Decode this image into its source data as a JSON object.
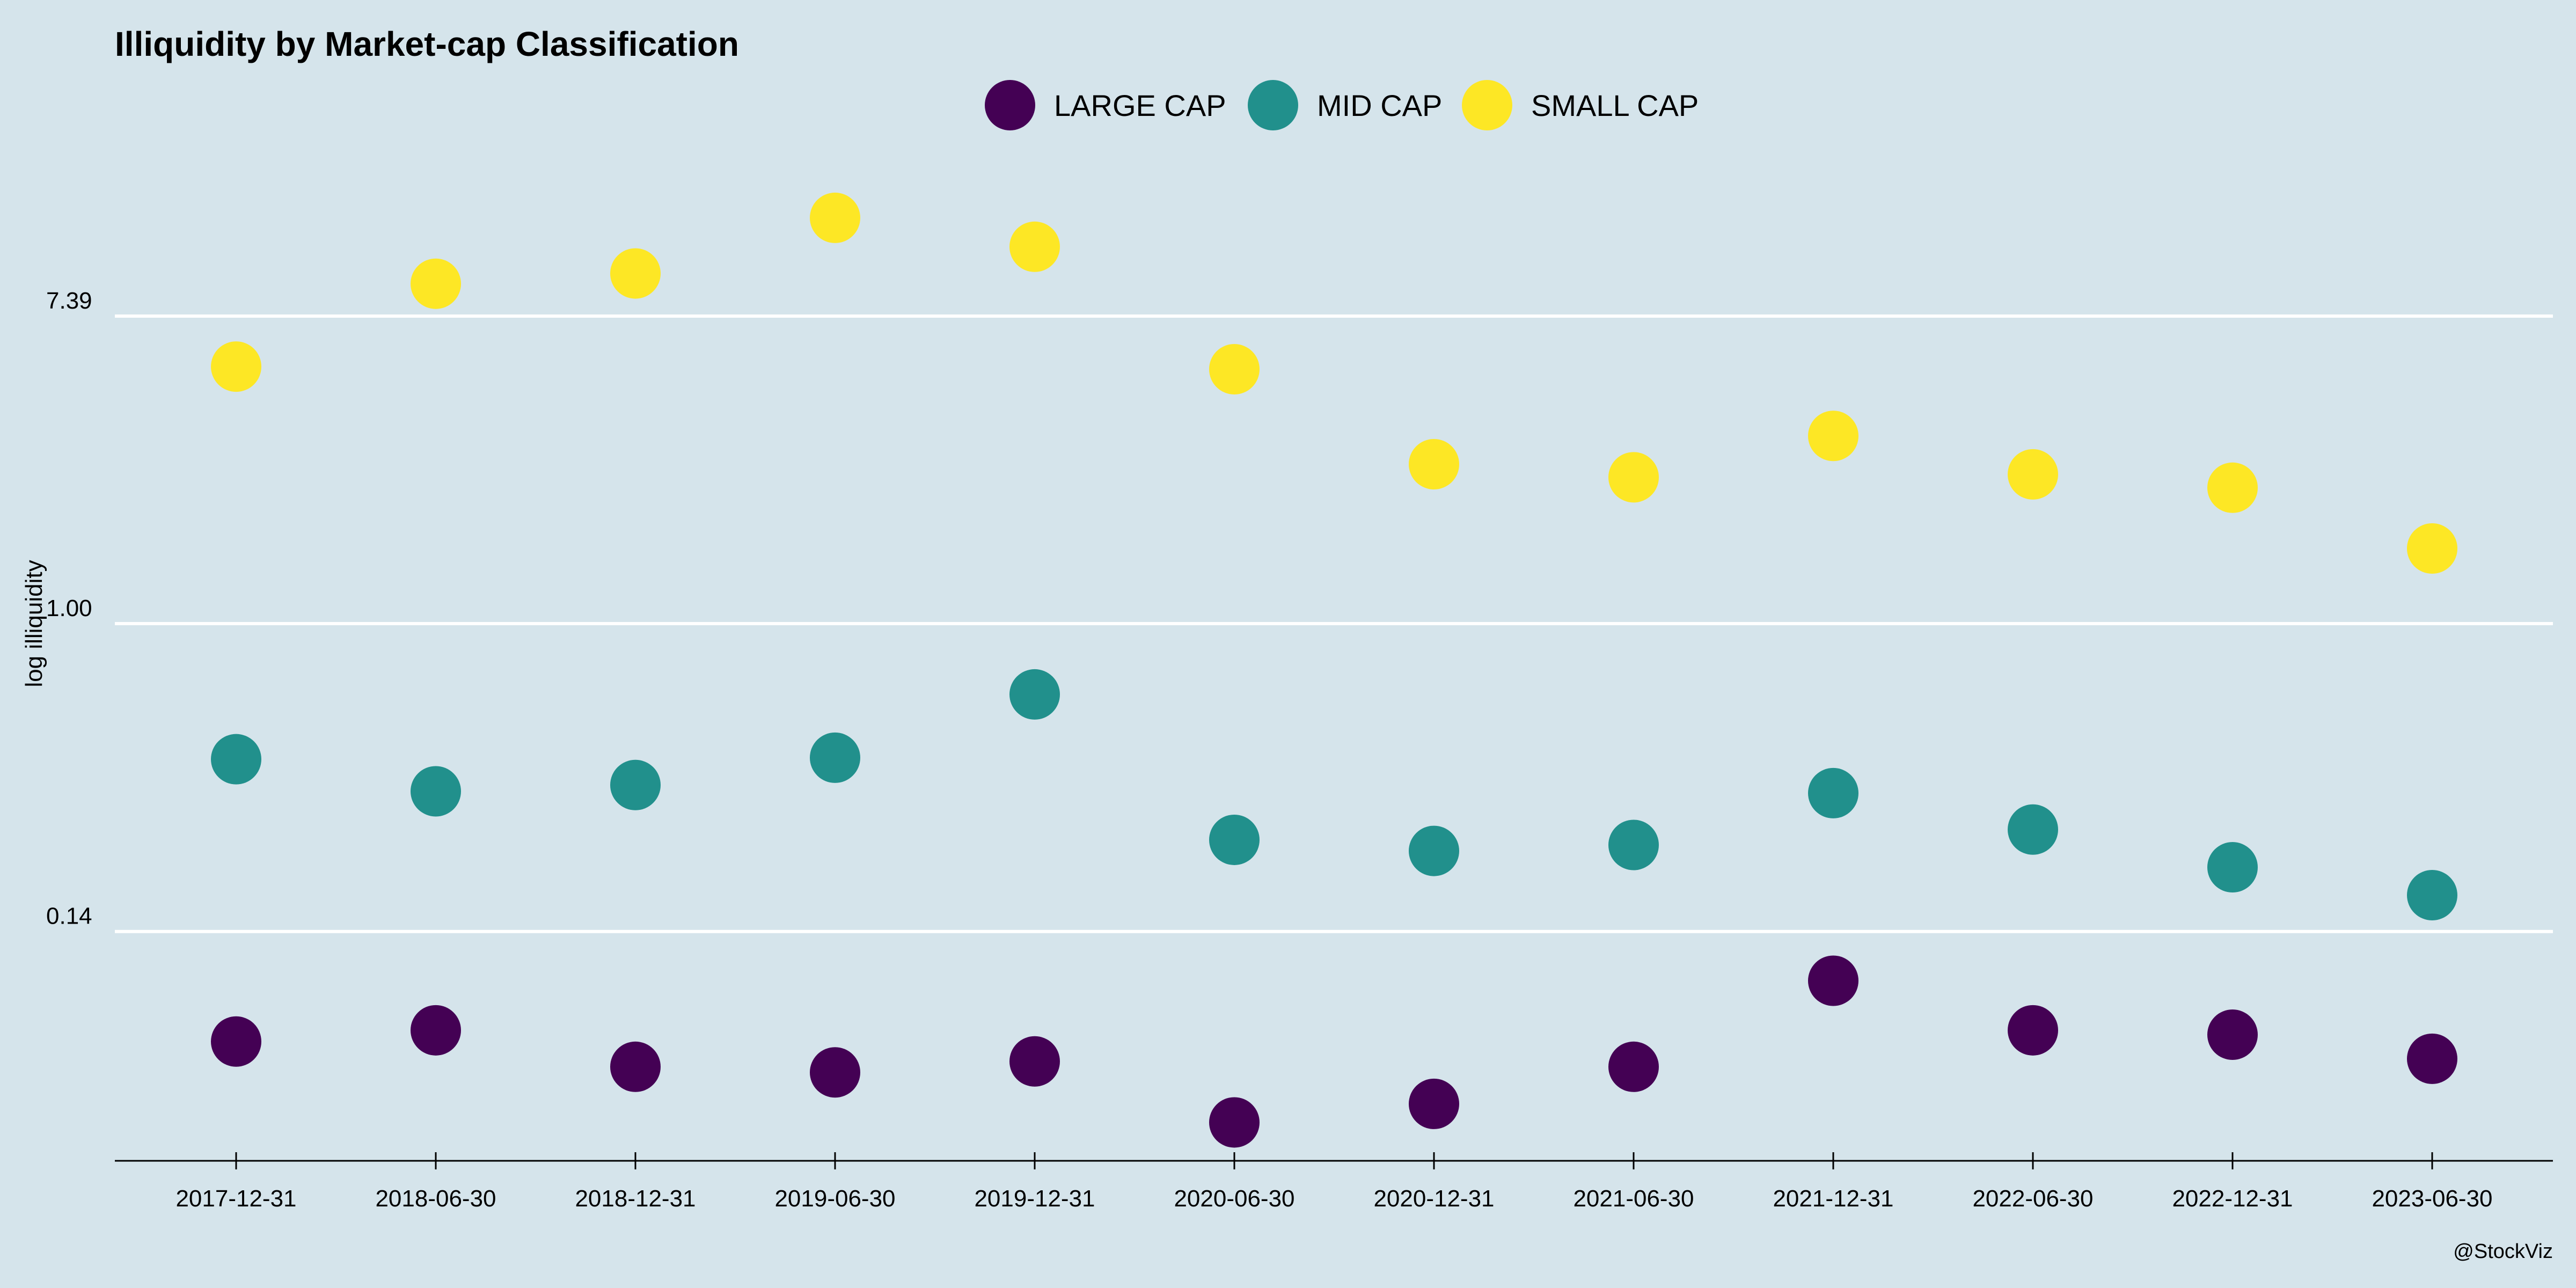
{
  "chart_data": {
    "type": "scatter",
    "title": "Illiquidity by Market-cap Classification",
    "xlabel": "",
    "ylabel": "log illiquidity",
    "scale": "log",
    "yticks": [
      {
        "value": 0.135,
        "label": "0.14"
      },
      {
        "value": 1.0,
        "label": "1.00"
      },
      {
        "value": 7.389,
        "label": "7.39"
      }
    ],
    "ylim": [
      0.03,
      45
    ],
    "grid": {
      "horizontal": true,
      "vertical": false
    },
    "legend_position": "top-center",
    "caption": "@StockViz",
    "categories": [
      "2017-12-31",
      "2018-06-30",
      "2018-12-31",
      "2019-06-30",
      "2019-12-31",
      "2020-06-30",
      "2020-12-31",
      "2021-06-30",
      "2021-12-31",
      "2022-06-30",
      "2022-12-31",
      "2023-06-30"
    ],
    "series": [
      {
        "name": "LARGE CAP",
        "color": "#440154",
        "values": [
          0.066,
          0.071,
          0.056,
          0.054,
          0.058,
          0.039,
          0.044,
          0.056,
          0.098,
          0.071,
          0.069,
          0.059
        ]
      },
      {
        "name": "MID CAP",
        "color": "#21908c",
        "values": [
          0.414,
          0.336,
          0.35,
          0.418,
          0.631,
          0.245,
          0.228,
          0.237,
          0.332,
          0.262,
          0.205,
          0.171
        ]
      },
      {
        "name": "SMALL CAP",
        "color": "#fde725",
        "values": [
          5.32,
          9.12,
          9.75,
          14.0,
          11.6,
          5.23,
          2.82,
          2.59,
          3.39,
          2.64,
          2.42,
          1.63
        ]
      }
    ]
  }
}
